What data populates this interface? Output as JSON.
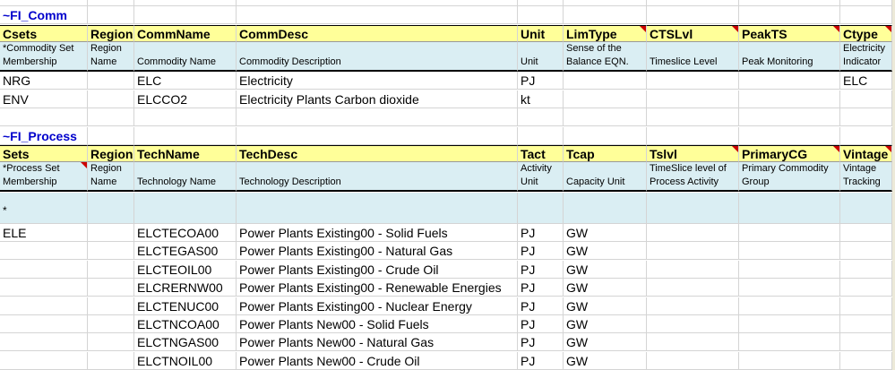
{
  "comm_section": {
    "title": "~FI_Comm",
    "headers": [
      "Csets",
      "Region",
      "CommName",
      "CommDesc",
      "Unit",
      "LimType",
      "CTSLvl",
      "PeakTS",
      "Ctype"
    ],
    "desc_top": [
      "*Commodity Set",
      "Region",
      "",
      "",
      "",
      "Sense of the",
      "",
      "",
      "Electricity"
    ],
    "desc_bottom": [
      "Membership",
      "Name",
      "Commodity Name",
      "Commodity Description",
      "Unit",
      "Balance EQN.",
      "Timeslice Level",
      "Peak Monitoring",
      "Indicator"
    ],
    "rows": [
      [
        "NRG",
        "",
        "ELC",
        "Electricity",
        "PJ",
        "",
        "",
        "",
        "ELC"
      ],
      [
        "ENV",
        "",
        "ELCCO2",
        "Electricity Plants Carbon dioxide",
        "kt",
        "",
        "",
        "",
        ""
      ]
    ]
  },
  "process_section": {
    "title": "~FI_Process",
    "headers": [
      "Sets",
      "Region",
      "TechName",
      "TechDesc",
      "Tact",
      "Tcap",
      "Tslvl",
      "PrimaryCG",
      "Vintage"
    ],
    "desc_top": [
      "*Process Set",
      "Region",
      "",
      "",
      "Activity",
      "",
      "TimeSlice level of",
      "Primary Commodity",
      "Vintage"
    ],
    "desc_bottom": [
      "Membership",
      "Name",
      "Technology Name",
      "Technology Description",
      "Unit",
      "Capacity Unit",
      "Process Activity",
      "Group",
      "Tracking"
    ],
    "star_row": "*",
    "rows": [
      [
        "ELE",
        "",
        "ELCTECOA00",
        "Power Plants Existing00 - Solid Fuels",
        "PJ",
        "GW",
        "",
        "",
        ""
      ],
      [
        "",
        "",
        "ELCTEGAS00",
        "Power Plants Existing00 - Natural Gas",
        "PJ",
        "GW",
        "",
        "",
        ""
      ],
      [
        "",
        "",
        "ELCTEOIL00",
        "Power Plants Existing00 - Crude Oil",
        "PJ",
        "GW",
        "",
        "",
        ""
      ],
      [
        "",
        "",
        "ELCRERNW00",
        "Power Plants Existing00 - Renewable Energies",
        "PJ",
        "GW",
        "",
        "",
        ""
      ],
      [
        "",
        "",
        "ELCTENUC00",
        "Power Plants Existing00 - Nuclear Energy",
        "PJ",
        "GW",
        "",
        "",
        ""
      ],
      [
        "",
        "",
        "ELCTNCOA00",
        "Power Plants New00 - Solid Fuels",
        "PJ",
        "GW",
        "",
        "",
        ""
      ],
      [
        "",
        "",
        "ELCTNGAS00",
        "Power Plants New00 - Natural Gas",
        "PJ",
        "GW",
        "",
        "",
        ""
      ],
      [
        "",
        "",
        "ELCTNOIL00",
        "Power Plants New00 - Crude Oil",
        "PJ",
        "GW",
        "",
        "",
        ""
      ]
    ]
  }
}
